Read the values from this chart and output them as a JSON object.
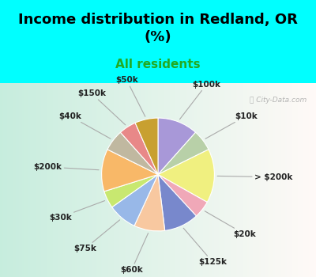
{
  "title": "Income distribution in Redland, OR\n(%)",
  "subtitle": "All residents",
  "title_color": "#000000",
  "subtitle_color": "#22aa22",
  "bg_cyan": "#00ffff",
  "bg_chart_left": "#c8eedd",
  "bg_chart_right": "#e8f8f8",
  "watermark": "ⓘ City-Data.com",
  "slices": [
    {
      "label": "$100k",
      "value": 10.5,
      "color": "#a898d8"
    },
    {
      "label": "$10k",
      "value": 5.5,
      "color": "#b8d0a8"
    },
    {
      "label": "> $200k",
      "value": 14.0,
      "color": "#f0f080"
    },
    {
      "label": "$20k",
      "value": 4.5,
      "color": "#f0a8b8"
    },
    {
      "label": "$125k",
      "value": 9.0,
      "color": "#7888cc"
    },
    {
      "label": "$60k",
      "value": 8.0,
      "color": "#f8c8a0"
    },
    {
      "label": "$75k",
      "value": 7.5,
      "color": "#98b8e8"
    },
    {
      "label": "$30k",
      "value": 4.5,
      "color": "#c8e870"
    },
    {
      "label": "$200k",
      "value": 11.0,
      "color": "#f8b868"
    },
    {
      "label": "$40k",
      "value": 5.5,
      "color": "#c0b8a0"
    },
    {
      "label": "$150k",
      "value": 4.5,
      "color": "#e88888"
    },
    {
      "label": "$50k",
      "value": 6.0,
      "color": "#c8a030"
    }
  ],
  "title_fontsize": 13,
  "subtitle_fontsize": 11,
  "label_fontsize": 7.5
}
